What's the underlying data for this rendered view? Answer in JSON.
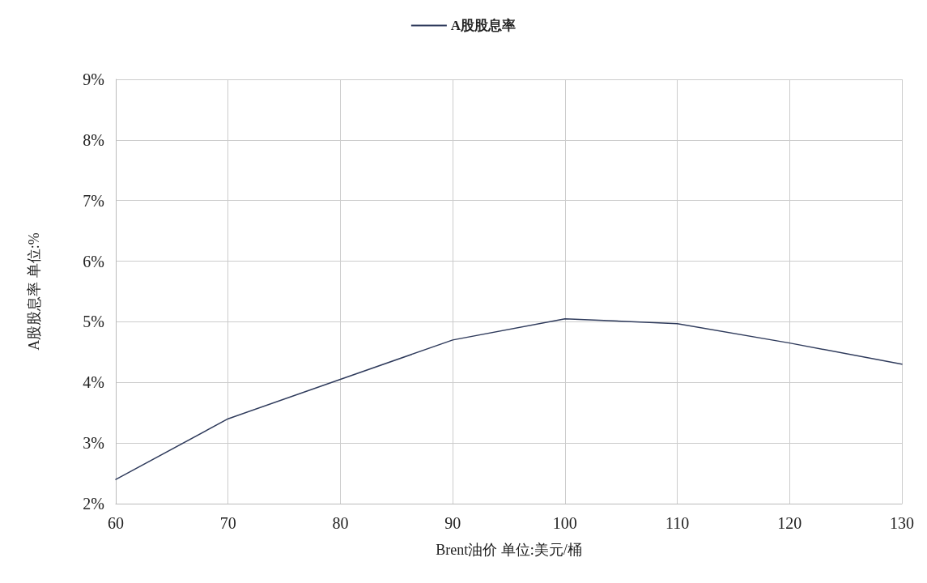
{
  "chart_data": {
    "type": "line",
    "xlabel": "Brent油价 单位:美元/桶",
    "ylabel": "A股股息率 单位:%",
    "x": [
      60,
      70,
      80,
      90,
      100,
      110,
      120,
      130
    ],
    "series": [
      {
        "name": "A股股息率",
        "color": "#2f3b5c",
        "values": [
          2.4,
          3.4,
          4.05,
          4.7,
          5.05,
          4.97,
          4.65,
          4.3
        ]
      }
    ],
    "xlim": [
      60,
      130
    ],
    "xticks": [
      60,
      70,
      80,
      90,
      100,
      110,
      120,
      130
    ],
    "ylim": [
      2,
      9
    ],
    "yticks": [
      {
        "value": 2,
        "label": "2%"
      },
      {
        "value": 3,
        "label": "3%"
      },
      {
        "value": 4,
        "label": "4%"
      },
      {
        "value": 5,
        "label": "5%"
      },
      {
        "value": 6,
        "label": "6%"
      },
      {
        "value": 7,
        "label": "7%"
      },
      {
        "value": 8,
        "label": "8%"
      },
      {
        "value": 9,
        "label": "9%"
      }
    ],
    "grid": true,
    "legend": "top",
    "marker": "none",
    "line_style": "solid"
  }
}
